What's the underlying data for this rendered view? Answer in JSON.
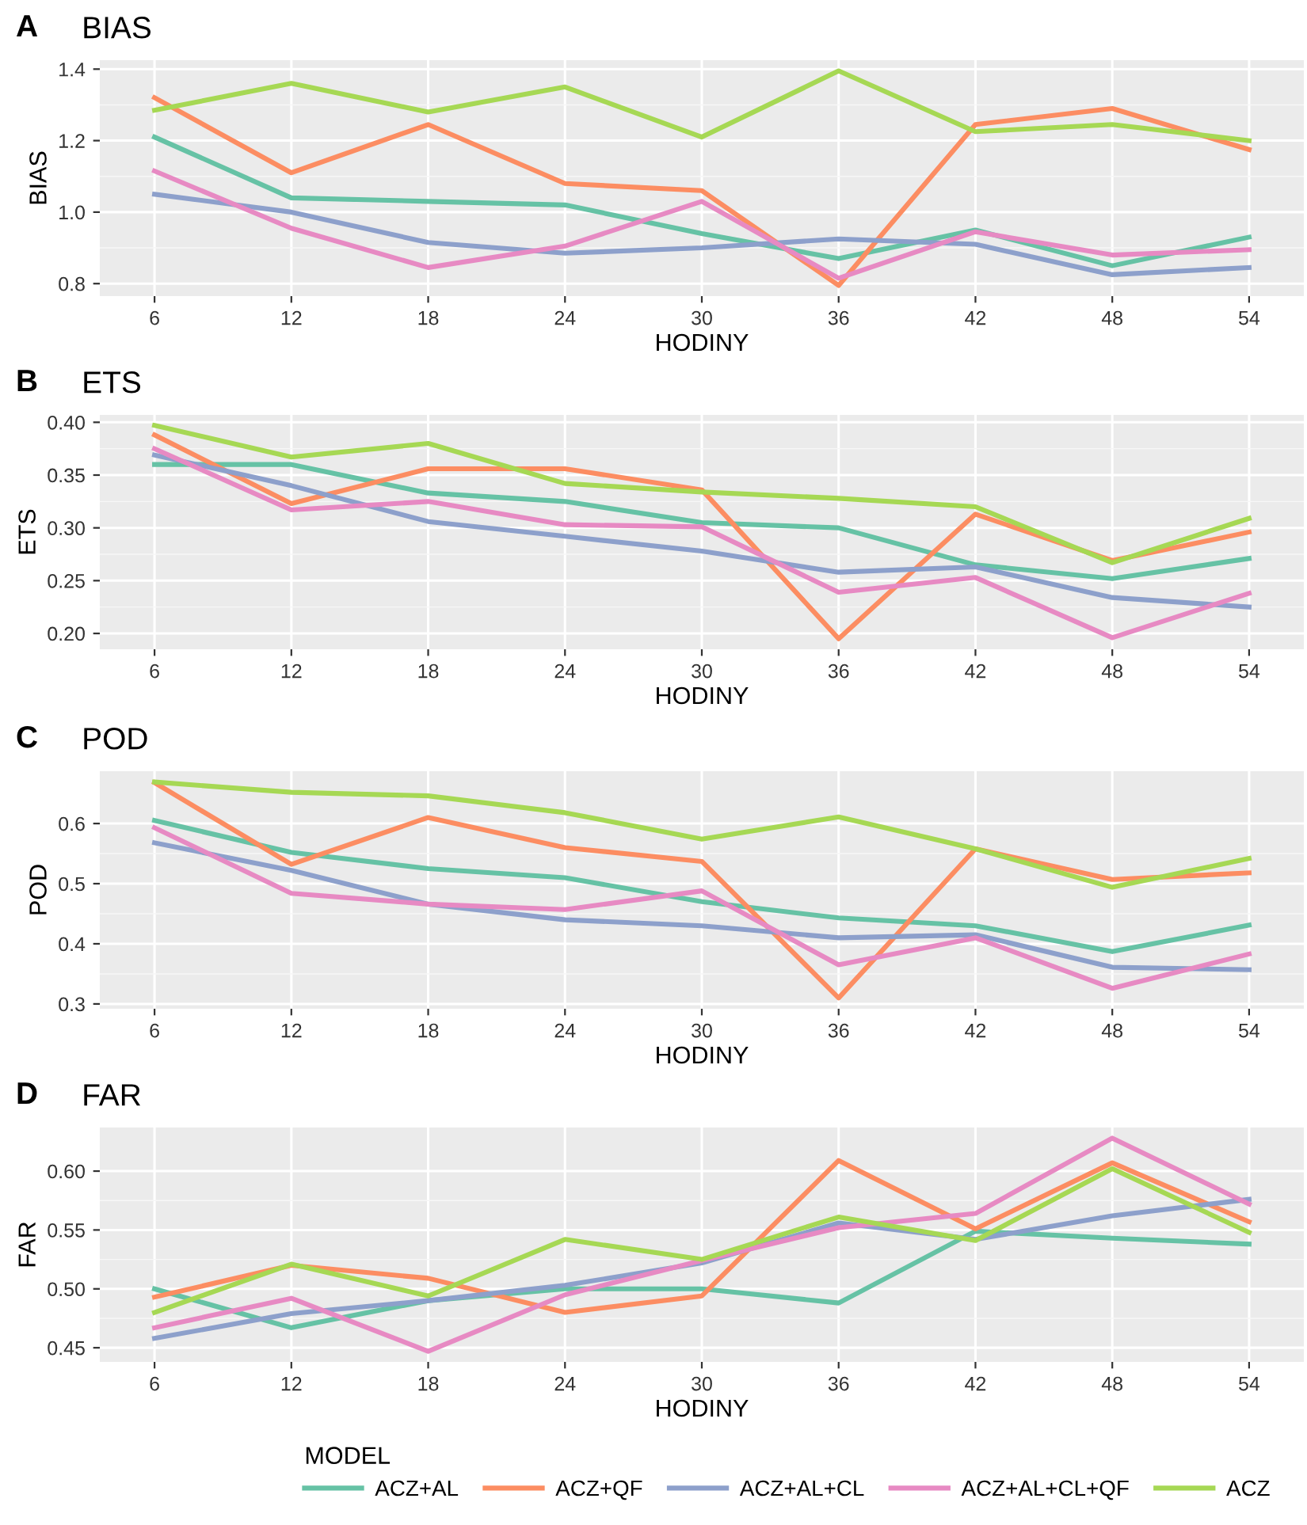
{
  "chart_data": [
    {
      "type": "line",
      "title": "BIAS",
      "annotations": [
        "A"
      ],
      "xlabel": "HODINY",
      "ylabel": "BIAS",
      "x": [
        6,
        12,
        18,
        24,
        30,
        36,
        42,
        48,
        54
      ],
      "xlim": [
        3.6,
        56.4
      ],
      "xticks": [
        6,
        12,
        18,
        24,
        30,
        36,
        42,
        48,
        54
      ],
      "ylim": [
        0.765,
        1.425
      ],
      "yticks": [
        {
          "value": 0.8,
          "label": "0.8"
        },
        {
          "value": 1.0,
          "label": "1.0"
        },
        {
          "value": 1.2,
          "label": "1.2"
        },
        {
          "value": 1.4,
          "label": "1.4"
        }
      ],
      "grid": true,
      "line_style": "solid",
      "marker": "none",
      "series": [
        {
          "color": "#66c2a5",
          "values": [
            1.21,
            1.04,
            1.03,
            1.02,
            0.94,
            0.87,
            0.95,
            0.85,
            0.93
          ]
        },
        {
          "color": "#fc8d62",
          "values": [
            1.32,
            1.11,
            1.245,
            1.08,
            1.06,
            0.795,
            1.245,
            1.29,
            1.175
          ]
        },
        {
          "color": "#8da0cb",
          "values": [
            1.05,
            1.0,
            0.915,
            0.885,
            0.9,
            0.925,
            0.91,
            0.825,
            0.845
          ]
        },
        {
          "color": "#e78ac3",
          "values": [
            1.115,
            0.955,
            0.845,
            0.905,
            1.03,
            0.815,
            0.945,
            0.88,
            0.895
          ]
        },
        {
          "color": "#a6d854",
          "values": [
            1.285,
            1.36,
            1.28,
            1.35,
            1.21,
            1.395,
            1.225,
            1.245,
            1.2
          ]
        }
      ]
    },
    {
      "type": "line",
      "title": "ETS",
      "annotations": [
        "B"
      ],
      "xlabel": "HODINY",
      "ylabel": "ETS",
      "x": [
        6,
        12,
        18,
        24,
        30,
        36,
        42,
        48,
        54
      ],
      "xlim": [
        3.6,
        56.4
      ],
      "xticks": [
        6,
        12,
        18,
        24,
        30,
        36,
        42,
        48,
        54
      ],
      "ylim": [
        0.185,
        0.407
      ],
      "yticks": [
        {
          "value": 0.2,
          "label": "0.20"
        },
        {
          "value": 0.25,
          "label": "0.25"
        },
        {
          "value": 0.3,
          "label": "0.30"
        },
        {
          "value": 0.35,
          "label": "0.35"
        },
        {
          "value": 0.4,
          "label": "0.40"
        }
      ],
      "grid": true,
      "line_style": "solid",
      "marker": "none",
      "series": [
        {
          "color": "#66c2a5",
          "values": [
            0.36,
            0.36,
            0.333,
            0.325,
            0.305,
            0.3,
            0.265,
            0.252,
            0.271
          ]
        },
        {
          "color": "#fc8d62",
          "values": [
            0.388,
            0.323,
            0.356,
            0.356,
            0.336,
            0.195,
            0.313,
            0.269,
            0.296
          ]
        },
        {
          "color": "#8da0cb",
          "values": [
            0.369,
            0.34,
            0.306,
            0.292,
            0.278,
            0.258,
            0.263,
            0.234,
            0.225
          ]
        },
        {
          "color": "#e78ac3",
          "values": [
            0.375,
            0.317,
            0.325,
            0.303,
            0.301,
            0.239,
            0.253,
            0.196,
            0.238
          ]
        },
        {
          "color": "#a6d854",
          "values": [
            0.397,
            0.367,
            0.38,
            0.342,
            0.334,
            0.328,
            0.32,
            0.267,
            0.309
          ]
        }
      ]
    },
    {
      "type": "line",
      "title": "POD",
      "annotations": [
        "C"
      ],
      "xlabel": "HODINY",
      "ylabel": "POD",
      "x": [
        6,
        12,
        18,
        24,
        30,
        36,
        42,
        48,
        54
      ],
      "xlim": [
        3.6,
        56.4
      ],
      "xticks": [
        6,
        12,
        18,
        24,
        30,
        36,
        42,
        48,
        54
      ],
      "ylim": [
        0.292,
        0.687
      ],
      "yticks": [
        0.3,
        0.4,
        0.5,
        0.6
      ],
      "grid": true,
      "line_style": "solid",
      "marker": "none",
      "series": [
        {
          "color": "#66c2a5",
          "values": [
            0.605,
            0.552,
            0.525,
            0.51,
            0.47,
            0.443,
            0.43,
            0.387,
            0.431
          ]
        },
        {
          "color": "#fc8d62",
          "values": [
            0.668,
            0.532,
            0.61,
            0.56,
            0.537,
            0.31,
            0.558,
            0.507,
            0.518
          ]
        },
        {
          "color": "#8da0cb",
          "values": [
            0.568,
            0.522,
            0.466,
            0.44,
            0.43,
            0.41,
            0.415,
            0.361,
            0.357
          ]
        },
        {
          "color": "#e78ac3",
          "values": [
            0.593,
            0.484,
            0.466,
            0.457,
            0.488,
            0.365,
            0.41,
            0.326,
            0.383
          ]
        },
        {
          "color": "#a6d854",
          "values": [
            0.669,
            0.652,
            0.646,
            0.618,
            0.574,
            0.611,
            0.558,
            0.494,
            0.542
          ]
        }
      ]
    },
    {
      "type": "line",
      "title": "FAR",
      "annotations": [
        "D"
      ],
      "xlabel": "HODINY",
      "ylabel": "FAR",
      "x": [
        6,
        12,
        18,
        24,
        30,
        36,
        42,
        48,
        54
      ],
      "xlim": [
        3.6,
        56.4
      ],
      "xticks": [
        6,
        12,
        18,
        24,
        30,
        36,
        42,
        48,
        54
      ],
      "ylim": [
        0.438,
        0.637
      ],
      "yticks": [
        {
          "value": 0.45,
          "label": "0.45"
        },
        {
          "value": 0.5,
          "label": "0.50"
        },
        {
          "value": 0.55,
          "label": "0.55"
        },
        {
          "value": 0.6,
          "label": "0.60"
        }
      ],
      "grid": true,
      "legend": "bottom",
      "legend_title": "MODEL",
      "line_style": "solid",
      "marker": "none",
      "series": [
        {
          "name": "ACZ+AL",
          "color": "#66c2a5",
          "values": [
            0.5,
            0.467,
            0.49,
            0.5,
            0.5,
            0.488,
            0.549,
            0.543,
            0.538
          ]
        },
        {
          "name": "ACZ+QF",
          "color": "#fc8d62",
          "values": [
            0.493,
            0.52,
            0.509,
            0.48,
            0.494,
            0.609,
            0.551,
            0.607,
            0.557
          ]
        },
        {
          "name": "ACZ+AL+CL",
          "color": "#8da0cb",
          "values": [
            0.458,
            0.479,
            0.49,
            0.503,
            0.522,
            0.556,
            0.542,
            0.562,
            0.576
          ]
        },
        {
          "name": "ACZ+AL+CL+QF",
          "color": "#e78ac3",
          "values": [
            0.467,
            0.492,
            0.447,
            0.495,
            0.524,
            0.552,
            0.564,
            0.628,
            0.572
          ]
        },
        {
          "name": "ACZ",
          "color": "#a6d854",
          "values": [
            0.48,
            0.521,
            0.494,
            0.542,
            0.525,
            0.561,
            0.541,
            0.602,
            0.548
          ]
        }
      ]
    }
  ]
}
